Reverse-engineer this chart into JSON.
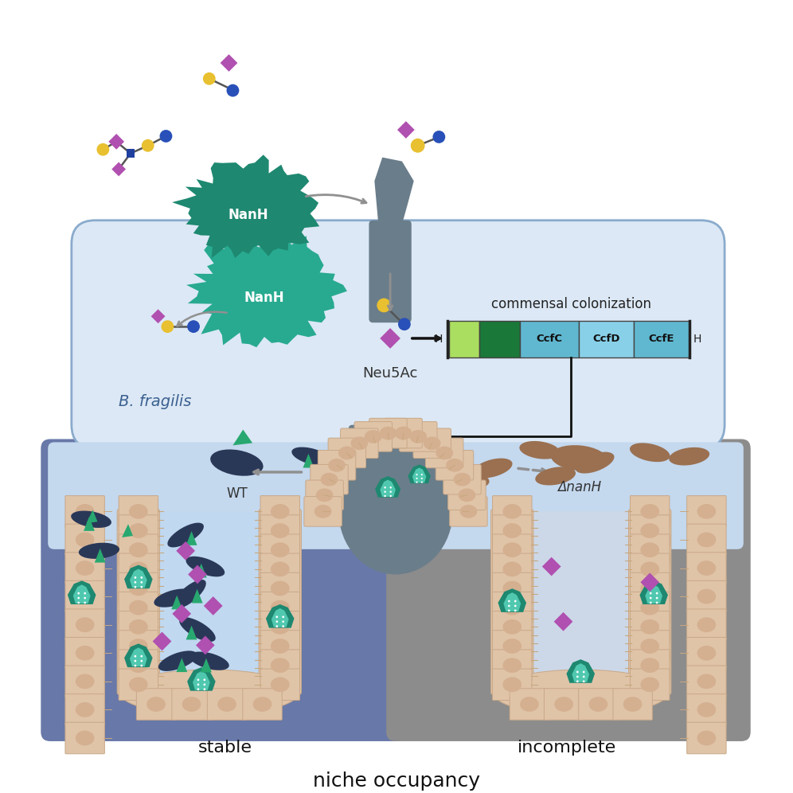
{
  "bg_color": "#ffffff",
  "cell_bg": "#dce8f5",
  "cell_border": "#8aabcc",
  "teal_dark": "#1e8870",
  "teal_medium": "#2aaa90",
  "teal_light": "#50c8b0",
  "gray_protein": "#6a7d8a",
  "gray_dark": "#4a5a68",
  "purple_diamond": "#b050b0",
  "blue_circle": "#2850b8",
  "yellow_circle": "#e8c030",
  "blue_square": "#2040a0",
  "stable_bg": "#6878a8",
  "incomplete_bg": "#8c8c8c",
  "lumen_blue_stable": "#c0d8f0",
  "lumen_blue_incomplete": "#ccd8e8",
  "cell_peach": "#e0c4a8",
  "cell_border_color": "#c8a888",
  "nucleus_color": "#d4b090",
  "green_light": "#aade60",
  "green_dark": "#1a7838",
  "ccf_blue": "#60b8d0",
  "ccf_blue2": "#88d0e8",
  "wt_blue": "#2a3858",
  "wt_teal": "#28a870",
  "arrow_gray": "#909090",
  "nanh_color1": "#1e8870",
  "nanh_color2": "#28aa90",
  "brown_bact": "#9a7050",
  "title_text": "niche occupancy",
  "stable_text": "stable",
  "incomplete_text": "incomplete",
  "bfrag_text": "B. fragilis",
  "nanh_text": "NanH",
  "neu5ac_text": "Neu5Ac",
  "wt_text": "WT",
  "delta_nanh_text": "ΔnanH",
  "commensal_text": "commensal colonization",
  "ccfc_text": "CcfC",
  "ccfd_text": "CcfD",
  "ccfe_text": "CcfE"
}
